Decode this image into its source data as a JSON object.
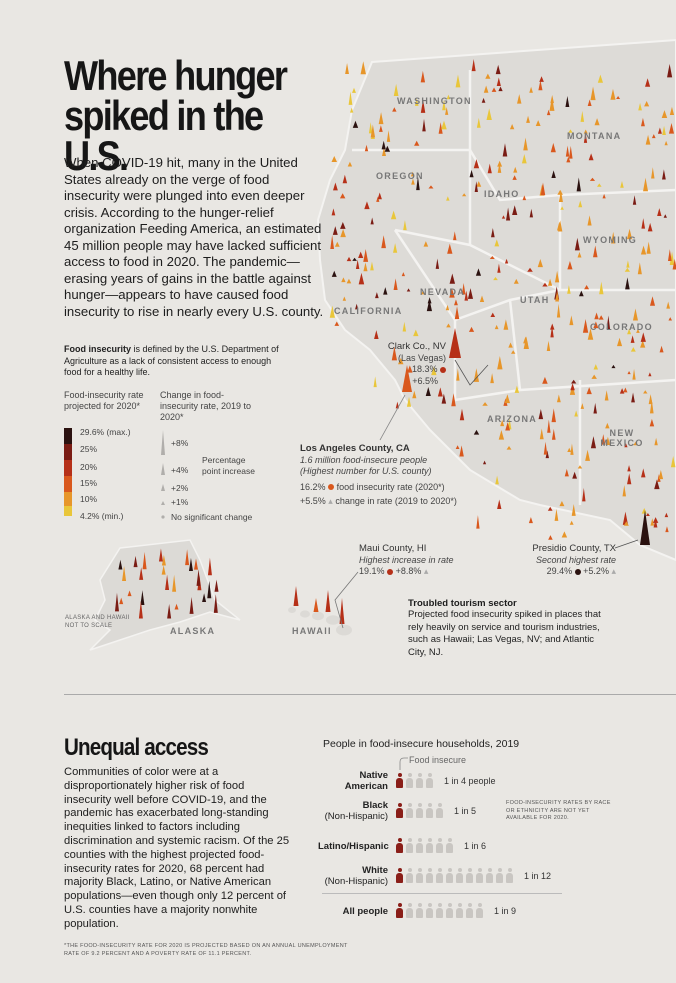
{
  "title": "Where hunger spiked in the U.S.",
  "intro": "When COVID-19 hit, many in the United States already on the verge of food insecurity were plunged into even deeper crisis. According to the hunger-relief organization Feeding America, an estimated 45 million people may have lacked sufficient access to food in 2020. The pandemic—erasing years of gains in the battle against hunger—appears to have caused food insecurity to rise in nearly every U.S. county.",
  "definition": {
    "term": "Food insecurity",
    "text": " is defined by the U.S. Department of Agriculture as a lack of consistent access to enough food for a healthy life."
  },
  "legend": {
    "rate_title": "Food-insecurity rate projected for 2020*",
    "rate_labels": [
      "29.6% (max.)",
      "25%",
      "20%",
      "15%",
      "10%",
      "4.2% (min.)"
    ],
    "rate_colors": [
      "#2b1210",
      "#7a1c14",
      "#b63018",
      "#d9581d",
      "#e7962a",
      "#e9c63a"
    ],
    "change_title": "Change in food-insecurity rate, 2019 to 2020*",
    "change_labels": [
      "+8%",
      "+4%",
      "+2%",
      "+1%",
      "No significant change"
    ],
    "change_note": "Percentage point increase"
  },
  "states": {
    "washington": "WASHINGTON",
    "montana": "MONTANA",
    "oregon": "OREGON",
    "idaho": "IDAHO",
    "wyoming": "WYOMING",
    "nevada": "NEVADA",
    "utah": "UTAH",
    "california": "CALIFORNIA",
    "colorado": "COLORADO",
    "arizona": "ARIZONA",
    "new_mexico": "NEW MEXICO",
    "alaska": "ALASKA",
    "hawaii": "HAWAII"
  },
  "alaska_note": "ALASKA AND HAWAII NOT TO SCALE",
  "callouts": {
    "clark": {
      "name": "Clark Co., NV",
      "sub": "(Las Vegas)",
      "rate": "18.3%",
      "change": "+6.5%"
    },
    "la": {
      "name": "Los Angeles County, CA",
      "sub1": "1.6 million food-insecure people",
      "sub2": "(Highest number for U.S. county)",
      "rate": "16.2%",
      "rate_label": "food insecurity rate (2020*)",
      "change": "+5.5%",
      "change_label": "change in rate (2019 to 2020*)"
    },
    "maui": {
      "name": "Maui County, HI",
      "sub": "Highest increase in rate",
      "rate": "19.1%",
      "change": "+8.8%"
    },
    "presidio": {
      "name": "Presidio County, TX",
      "sub": "Second highest rate",
      "rate": "29.4%",
      "change": "+5.2%"
    }
  },
  "tourism": {
    "title": "Troubled tourism sector",
    "text": "Projected food insecurity spiked in places that rely heavily on service and tourism industries, such as Hawaii; Las Vegas, NV; and Atlantic City, NJ."
  },
  "section2": {
    "title": "Unequal access",
    "text": "Communities of color were at a disproportionately higher risk of food insecurity well before COVID-19, and the pandemic has exacerbated long-standing inequities linked to factors including discrimination and systemic racism. Of the 25 counties with the highest projected food-insecurity rates for 2020, 68 percent had majority Black, Latino, or Native American populations—even though only 12 percent of U.S. counties have a majority nonwhite population."
  },
  "footnote": "*THE FOOD-INSECURITY RATE FOR 2020 IS PROJECTED BASED ON AN ANNUAL UNEMPLOYMENT RATE OF 9.2 PERCENT AND A POVERTY RATE OF 11.1 PERCENT.",
  "chart_data": {
    "type": "pictogram",
    "title": "People in food-insecure households, 2019",
    "highlight_label": "Food insecure",
    "note": "FOOD-INSECURITY RATES BY RACE OR ETHNICITY ARE NOT YET AVAILABLE FOR 2020.",
    "groups": [
      {
        "name": "Native",
        "name2": "American",
        "ratio_label": "1 in 4 people",
        "insecure": 1,
        "total": 4
      },
      {
        "name": "Black",
        "name2": "(Non-Hispanic)",
        "ratio_label": "1 in 5",
        "insecure": 1,
        "total": 5
      },
      {
        "name": "Latino/Hispanic",
        "name2": "",
        "ratio_label": "1 in 6",
        "insecure": 1,
        "total": 6
      },
      {
        "name": "White",
        "name2": "(Non-Hispanic)",
        "ratio_label": "1 in 12",
        "insecure": 1,
        "total": 12
      },
      {
        "name": "All people",
        "name2": "",
        "ratio_label": "1 in 9",
        "insecure": 1,
        "total": 9
      }
    ],
    "colors": {
      "insecure": "#8a1e18",
      "other": "#c9c6c2"
    }
  }
}
